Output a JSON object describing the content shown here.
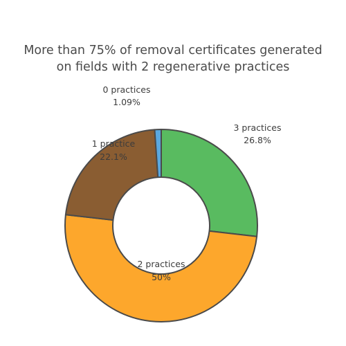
{
  "chart_data": {
    "type": "pie",
    "title_line1": "More than 75% of removal certificates generated",
    "title_line2": "on fields with 2 regenerative practices",
    "slices": [
      {
        "label": "3 practices",
        "value": 26.8,
        "value_text": "26.8%",
        "color": "#59bb60"
      },
      {
        "label": "2 practices",
        "value": 50.0,
        "value_text": "50%",
        "color": "#fda72c"
      },
      {
        "label": "1 practice",
        "value": 22.1,
        "value_text": "22.1%",
        "color": "#8a5d32"
      },
      {
        "label": "0 practices",
        "value": 1.09,
        "value_text": "1.09%",
        "color": "#5aa8e0"
      }
    ],
    "style": "donut",
    "start_angle_degrees": 0,
    "direction": "clockwise",
    "outline_color": "#4a4a4a"
  }
}
